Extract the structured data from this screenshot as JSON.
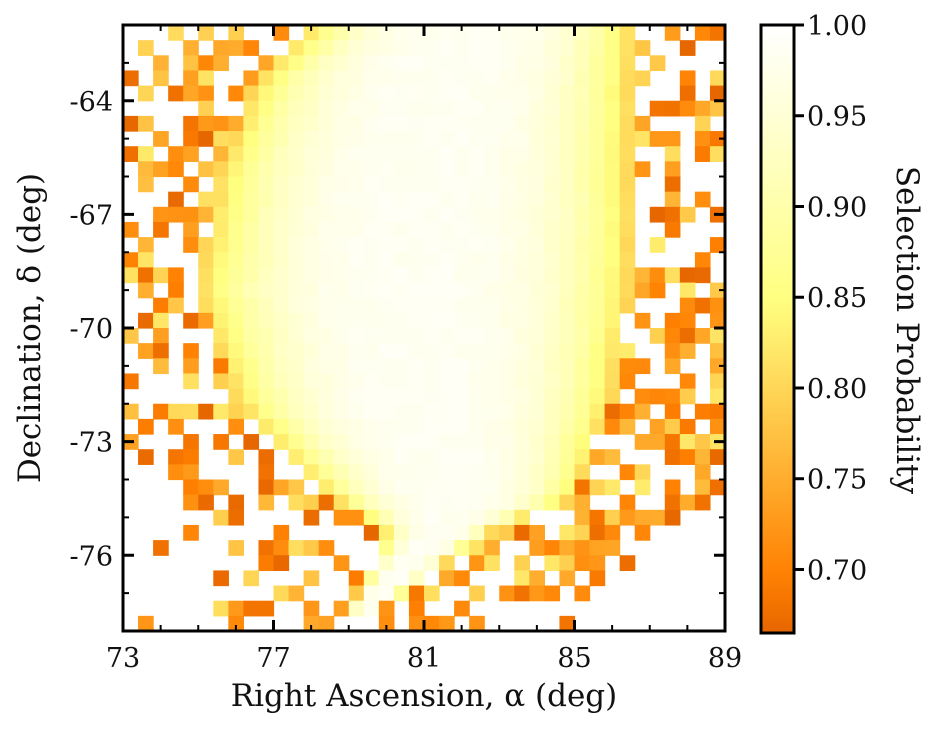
{
  "chart_data": {
    "type": "heatmap",
    "title": "",
    "xlabel": "Right Ascension, α (deg)",
    "ylabel": "Declination, δ (deg)",
    "colorbar_label": "Selection Probability",
    "xlim": [
      73,
      89
    ],
    "ylim": [
      -78,
      -62
    ],
    "x_ticks": [
      73,
      77,
      81,
      85,
      89
    ],
    "x_tick_labels": [
      "73",
      "77",
      "81",
      "85",
      "89"
    ],
    "y_ticks": [
      -64,
      -67,
      -70,
      -73,
      -76
    ],
    "y_tick_labels": [
      "-64",
      "-67",
      "-70",
      "-73",
      "-76"
    ],
    "colorbar_range": [
      0.665,
      1.0
    ],
    "colorbar_ticks": [
      1.0,
      0.95,
      0.9,
      0.85,
      0.8,
      0.75,
      0.7
    ],
    "colorbar_tick_labels": [
      "1.00",
      "0.95",
      "0.90",
      "0.85",
      "0.80",
      "0.75",
      "0.70"
    ],
    "colormap": "afmhot",
    "grid_resolution_deg": {
      "ra": 0.4,
      "dec": 0.4
    },
    "field_shape": {
      "center_ra": 81.5,
      "center_dec": -69.3,
      "core_probability": 0.99,
      "edge_probability": 0.8,
      "upper_boundary": {
        "dec": [
          -62.0,
          -63.5,
          -66.0,
          -69.0,
          -72.0,
          -74.5,
          -75.5
        ],
        "ra_min": [
          78.0,
          76.5,
          75.5,
          75.0,
          76.0,
          78.5,
          80.5
        ],
        "ra_max": [
          86.5,
          86.5,
          86.5,
          86.5,
          86.0,
          85.0,
          84.0
        ]
      },
      "bottom_apex": {
        "ra": 79.0,
        "dec": -77.5
      }
    },
    "noise_fraction": 0.45
  },
  "colors": {
    "background": "#ffffff",
    "axis": "#000000",
    "empty": "#ffffff"
  }
}
